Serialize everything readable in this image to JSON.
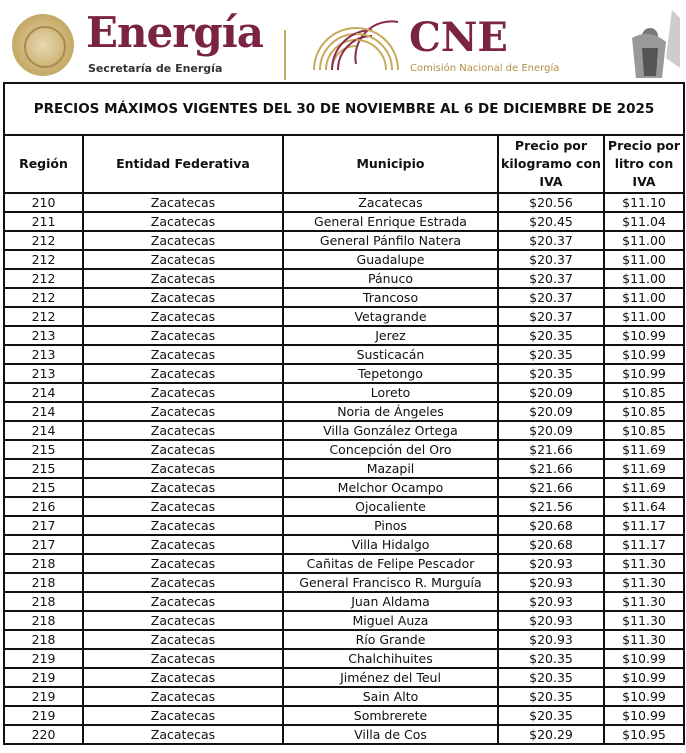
{
  "header": {
    "left_logo_title": "Energía",
    "left_logo_subtitle": "Secretaría de Energía",
    "right_logo_title": "CNE",
    "right_logo_subtitle": "Comisión Nacional de Energía",
    "colors": {
      "maroon": "#7b2344",
      "gold": "#b38e46"
    }
  },
  "table": {
    "title": "PRECIOS MÁXIMOS VIGENTES DEL 30 DE NOVIEMBRE AL 6 DE DICIEMBRE DE 2025",
    "columns": [
      "Región",
      "Entidad Federativa",
      "Municipio",
      "Precio por kilogramo con IVA",
      "Precio por litro con IVA"
    ],
    "rows": [
      [
        "210",
        "Zacatecas",
        "Zacatecas",
        "$20.56",
        "$11.10"
      ],
      [
        "211",
        "Zacatecas",
        "General Enrique Estrada",
        "$20.45",
        "$11.04"
      ],
      [
        "212",
        "Zacatecas",
        "General Pánfilo Natera",
        "$20.37",
        "$11.00"
      ],
      [
        "212",
        "Zacatecas",
        "Guadalupe",
        "$20.37",
        "$11.00"
      ],
      [
        "212",
        "Zacatecas",
        "Pánuco",
        "$20.37",
        "$11.00"
      ],
      [
        "212",
        "Zacatecas",
        "Trancoso",
        "$20.37",
        "$11.00"
      ],
      [
        "212",
        "Zacatecas",
        "Vetagrande",
        "$20.37",
        "$11.00"
      ],
      [
        "213",
        "Zacatecas",
        "Jerez",
        "$20.35",
        "$10.99"
      ],
      [
        "213",
        "Zacatecas",
        "Susticacán",
        "$20.35",
        "$10.99"
      ],
      [
        "213",
        "Zacatecas",
        "Tepetongo",
        "$20.35",
        "$10.99"
      ],
      [
        "214",
        "Zacatecas",
        "Loreto",
        "$20.09",
        "$10.85"
      ],
      [
        "214",
        "Zacatecas",
        "Noria de Ángeles",
        "$20.09",
        "$10.85"
      ],
      [
        "214",
        "Zacatecas",
        "Villa González Ortega",
        "$20.09",
        "$10.85"
      ],
      [
        "215",
        "Zacatecas",
        "Concepción del Oro",
        "$21.66",
        "$11.69"
      ],
      [
        "215",
        "Zacatecas",
        "Mazapil",
        "$21.66",
        "$11.69"
      ],
      [
        "215",
        "Zacatecas",
        "Melchor Ocampo",
        "$21.66",
        "$11.69"
      ],
      [
        "216",
        "Zacatecas",
        "Ojocaliente",
        "$21.56",
        "$11.64"
      ],
      [
        "217",
        "Zacatecas",
        "Pinos",
        "$20.68",
        "$11.17"
      ],
      [
        "217",
        "Zacatecas",
        "Villa Hidalgo",
        "$20.68",
        "$11.17"
      ],
      [
        "218",
        "Zacatecas",
        "Cañitas de Felipe Pescador",
        "$20.93",
        "$11.30"
      ],
      [
        "218",
        "Zacatecas",
        "General Francisco R. Murguía",
        "$20.93",
        "$11.30"
      ],
      [
        "218",
        "Zacatecas",
        "Juan Aldama",
        "$20.93",
        "$11.30"
      ],
      [
        "218",
        "Zacatecas",
        "Miguel Auza",
        "$20.93",
        "$11.30"
      ],
      [
        "218",
        "Zacatecas",
        "Río Grande",
        "$20.93",
        "$11.30"
      ],
      [
        "219",
        "Zacatecas",
        "Chalchihuites",
        "$20.35",
        "$10.99"
      ],
      [
        "219",
        "Zacatecas",
        "Jiménez del Teul",
        "$20.35",
        "$10.99"
      ],
      [
        "219",
        "Zacatecas",
        "Sain Alto",
        "$20.35",
        "$10.99"
      ],
      [
        "219",
        "Zacatecas",
        "Sombrerete",
        "$20.35",
        "$10.99"
      ],
      [
        "220",
        "Zacatecas",
        "Villa de Cos",
        "$20.29",
        "$10.95"
      ]
    ]
  }
}
